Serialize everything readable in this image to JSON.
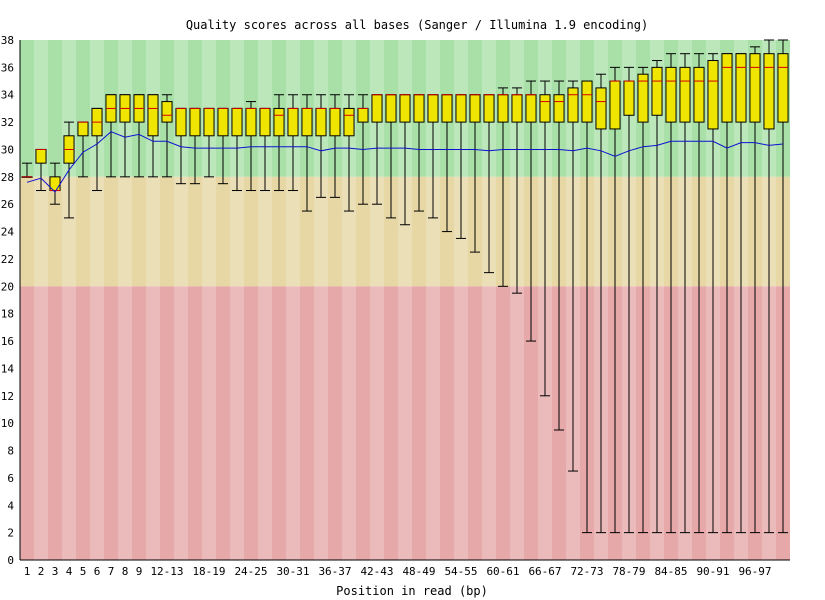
{
  "chart_data": {
    "type": "box",
    "title": "Quality scores across all bases (Sanger / Illumina 1.9 encoding)",
    "xlabel": "Position in read (bp)",
    "ylabel": "",
    "ylim": [
      0,
      38
    ],
    "y_ticks": [
      0,
      2,
      4,
      6,
      8,
      10,
      12,
      14,
      16,
      18,
      20,
      22,
      24,
      26,
      28,
      30,
      32,
      34,
      36,
      38
    ],
    "bands": [
      {
        "name": "good",
        "from": 28,
        "to": 38,
        "color": "#a8e0a8"
      },
      {
        "name": "reasonable",
        "from": 20,
        "to": 28,
        "color": "#e6d7a5"
      },
      {
        "name": "poor",
        "from": 0,
        "to": 20,
        "color": "#e6a8a8"
      }
    ],
    "colors": {
      "box_fill": "#f0e500",
      "median": "#d00000",
      "mean_line": "#1010d0",
      "whisker": "#000000"
    },
    "categories": [
      "1",
      "2",
      "3",
      "4",
      "5",
      "6",
      "7",
      "8",
      "9",
      "10-11",
      "12-13",
      "14-15",
      "16-17",
      "18-19",
      "20-21",
      "22-23",
      "24-25",
      "26-27",
      "28-29",
      "30-31",
      "32-33",
      "34-35",
      "36-37",
      "38-39",
      "40-41",
      "42-43",
      "44-45",
      "46-47",
      "48-49",
      "50-51",
      "52-53",
      "54-55",
      "56-57",
      "58-59",
      "60-61",
      "62-63",
      "64-65",
      "66-67",
      "68-69",
      "70-71",
      "72-73",
      "74-75",
      "76-77",
      "78-79",
      "80-81",
      "82-83",
      "84-85",
      "86-87",
      "88-89",
      "90-91",
      "92-93",
      "94-95",
      "96-97",
      "98-99",
      "100-101"
    ],
    "x_tick_labels": [
      "1",
      "2",
      "3",
      "4",
      "5",
      "6",
      "7",
      "8",
      "9",
      "12-13",
      "18-19",
      "24-25",
      "30-31",
      "36-37",
      "42-43",
      "48-49",
      "54-55",
      "60-61",
      "66-67",
      "72-73",
      "78-79",
      "84-85",
      "90-91",
      "96-97"
    ],
    "series": {
      "whisker_low": [
        28,
        27,
        26,
        25,
        28,
        27,
        28,
        28,
        28,
        28,
        28,
        27.5,
        27.5,
        28,
        27.5,
        27,
        27,
        27,
        27,
        27,
        25.5,
        26.5,
        26.5,
        25.5,
        26,
        26,
        25,
        24.5,
        25.5,
        25,
        24,
        23.5,
        22.5,
        21,
        20,
        19.5,
        16,
        12,
        9.5,
        6.5,
        2,
        2,
        2,
        2,
        2,
        2,
        2,
        2,
        2,
        2,
        2,
        2,
        2,
        2,
        2
      ],
      "q1": [
        28,
        29,
        27,
        29,
        31,
        31,
        32,
        32,
        32,
        31,
        32,
        31,
        31,
        31,
        31,
        31,
        31,
        31,
        31,
        31,
        31,
        31,
        31,
        31,
        32,
        32,
        32,
        32,
        32,
        32,
        32,
        32,
        32,
        32,
        32,
        32,
        32,
        32,
        32,
        32,
        32,
        31.5,
        31.5,
        32.5,
        32,
        32.5,
        32,
        32,
        32,
        31.5,
        32,
        32,
        32,
        31.5,
        32
      ],
      "median": [
        28,
        30,
        27,
        30,
        32,
        32,
        33,
        33,
        33,
        33,
        32.5,
        33,
        33,
        33,
        33,
        33,
        33,
        33,
        32.5,
        33,
        33,
        33,
        33,
        32.5,
        33,
        34,
        34,
        34,
        34,
        34,
        34,
        34,
        34,
        34,
        34,
        34,
        34,
        33.5,
        33.5,
        34,
        34,
        33.5,
        35,
        35,
        35,
        35,
        35,
        35,
        35,
        35,
        36,
        36,
        36,
        36,
        36
      ],
      "q3": [
        28,
        30,
        28,
        31,
        32,
        33,
        34,
        34,
        34,
        34,
        33.5,
        33,
        33,
        33,
        33,
        33,
        33,
        33,
        33,
        33,
        33,
        33,
        33,
        33,
        33,
        34,
        34,
        34,
        34,
        34,
        34,
        34,
        34,
        34,
        34,
        34,
        34,
        34,
        34,
        34.5,
        35,
        34.5,
        35,
        35,
        35.5,
        36,
        36,
        36,
        36,
        36.5,
        37,
        37,
        37,
        37,
        37
      ],
      "whisker_high": [
        29,
        30,
        29,
        32,
        32,
        33,
        34,
        34,
        34,
        34,
        34,
        33,
        33,
        33,
        33,
        33,
        33.5,
        33,
        34,
        34,
        34,
        34,
        34,
        34,
        34,
        34,
        34,
        34,
        34,
        34,
        34,
        34,
        34,
        34,
        34.5,
        34.5,
        35,
        35,
        35,
        35,
        35,
        35.5,
        36,
        36,
        36,
        36.5,
        37,
        37,
        37,
        37,
        37,
        37,
        37.5,
        38,
        38
      ],
      "mean": [
        27.6,
        27.9,
        26.9,
        28.5,
        29.8,
        30.4,
        31.3,
        30.9,
        31.1,
        30.6,
        30.6,
        30.2,
        30.1,
        30.1,
        30.1,
        30.1,
        30.2,
        30.2,
        30.2,
        30.2,
        30.2,
        29.9,
        30.1,
        30.1,
        30.0,
        30.1,
        30.1,
        30.1,
        30.0,
        30.0,
        30.0,
        30.0,
        30.0,
        29.9,
        30.0,
        30.0,
        30.0,
        30.0,
        30.0,
        29.9,
        30.1,
        29.9,
        29.5,
        29.9,
        30.2,
        30.3,
        30.6,
        30.6,
        30.6,
        30.6,
        30.1,
        30.5,
        30.5,
        30.3,
        30.4
      ]
    }
  }
}
